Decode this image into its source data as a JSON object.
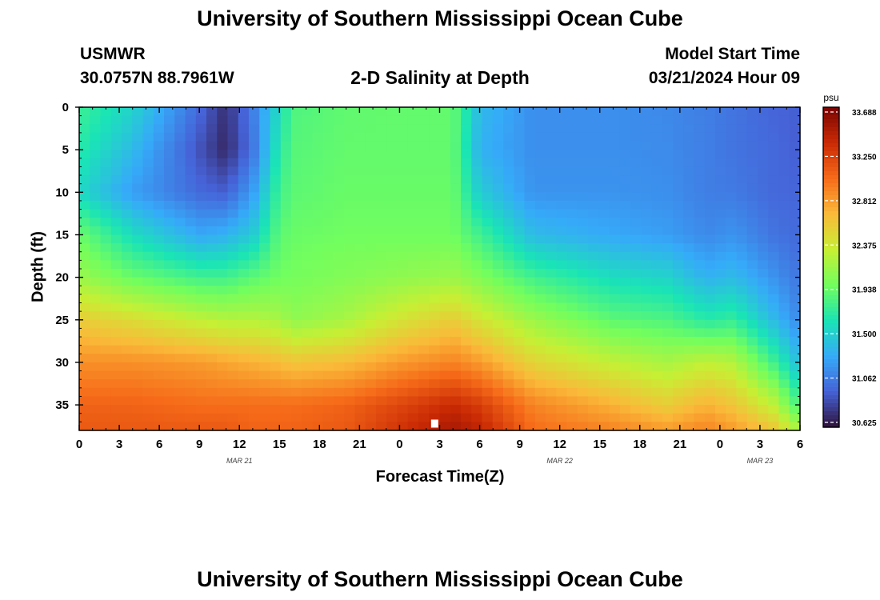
{
  "page": {
    "title": "University of Southern Mississippi Ocean Cube",
    "footer_title": "University of Southern Mississippi Ocean Cube"
  },
  "station": {
    "id": "USMWR",
    "coords": "30.0757N  88.7961W"
  },
  "model": {
    "label": "Model Start Time",
    "time": "03/21/2024 Hour 09"
  },
  "chart_data": {
    "type": "heatmap",
    "title": "2-D Salinity at Depth",
    "xlabel": "Forecast Time(Z)",
    "ylabel": "Depth (ft)",
    "x_unit": "forecast hours from 03/21 00Z",
    "xlim": [
      0,
      54
    ],
    "ylim": [
      0,
      38
    ],
    "y_inverted": true,
    "x_ticks": [
      0,
      3,
      6,
      9,
      12,
      15,
      18,
      21,
      24,
      27,
      30,
      33,
      36,
      39,
      42,
      45,
      48,
      51,
      54
    ],
    "x_tick_labels": [
      "0",
      "3",
      "6",
      "9",
      "12",
      "15",
      "18",
      "21",
      "0",
      "3",
      "6",
      "9",
      "12",
      "15",
      "18",
      "21",
      "0",
      "3",
      "6"
    ],
    "y_ticks": [
      0,
      5,
      10,
      15,
      20,
      25,
      30,
      35
    ],
    "y_tick_labels": [
      "0",
      "5",
      "10",
      "15",
      "20",
      "25",
      "30",
      "35"
    ],
    "date_labels": [
      {
        "x": 12,
        "text": "MAR 21"
      },
      {
        "x": 36,
        "text": "MAR 22"
      },
      {
        "x": 51,
        "text": "MAR 23"
      }
    ],
    "marker": {
      "x": 26.6,
      "y": 37.2
    },
    "colorbar": {
      "unit": "psu",
      "min": 30.625,
      "max": 33.688,
      "tick_labels": [
        "33.688",
        "33.250",
        "32.812",
        "32.375",
        "31.938",
        "31.500",
        "31.062",
        "30.625"
      ],
      "colors": [
        "#30123b",
        "#4662d7",
        "#36aaf9",
        "#1ae4b6",
        "#72fe5e",
        "#c7ef34",
        "#faba39",
        "#f66b19",
        "#ca2a04",
        "#7a0403"
      ]
    },
    "grid_dims": {
      "nx": 68,
      "ny": 38
    },
    "salinity_anchors": {
      "times": [
        0,
        4,
        9,
        11,
        13,
        15,
        16,
        20,
        24,
        28,
        30,
        34,
        40,
        44,
        47,
        49,
        52,
        54
      ],
      "depths": [
        0,
        5,
        10,
        15,
        20,
        25,
        30,
        35,
        38
      ],
      "values": [
        [
          31.78,
          31.7,
          31.58,
          31.96,
          32.15,
          32.55,
          32.85,
          33.05,
          33.1
        ],
        [
          31.55,
          31.4,
          31.25,
          31.6,
          31.95,
          32.45,
          32.85,
          33.05,
          33.1
        ],
        [
          31.0,
          30.9,
          31.0,
          31.3,
          31.8,
          32.3,
          32.8,
          33.0,
          33.1
        ],
        [
          30.75,
          30.72,
          30.95,
          31.35,
          31.8,
          32.25,
          32.75,
          33.0,
          33.1
        ],
        [
          31.1,
          31.05,
          31.25,
          31.5,
          31.9,
          32.25,
          32.7,
          33.0,
          33.05
        ],
        [
          31.6,
          31.7,
          31.8,
          31.9,
          31.98,
          32.2,
          32.65,
          33.0,
          33.05
        ],
        [
          31.85,
          31.88,
          31.9,
          31.95,
          32.0,
          32.1,
          32.6,
          33.0,
          33.05
        ],
        [
          31.92,
          31.93,
          31.95,
          31.98,
          32.05,
          32.2,
          32.65,
          33.05,
          33.1
        ],
        [
          31.93,
          31.93,
          31.95,
          31.98,
          32.1,
          32.4,
          32.8,
          33.2,
          33.3
        ],
        [
          31.93,
          31.93,
          31.95,
          31.98,
          32.15,
          32.55,
          32.9,
          33.35,
          33.5
        ],
        [
          31.4,
          31.35,
          31.5,
          31.8,
          32.05,
          32.4,
          32.8,
          33.25,
          33.4
        ],
        [
          31.18,
          31.18,
          31.2,
          31.4,
          31.8,
          32.15,
          32.5,
          32.9,
          33.0
        ],
        [
          31.18,
          31.18,
          31.2,
          31.3,
          31.6,
          31.9,
          32.3,
          32.7,
          32.9
        ],
        [
          31.15,
          31.16,
          31.18,
          31.25,
          31.55,
          31.85,
          32.2,
          32.55,
          32.8
        ],
        [
          31.1,
          31.1,
          31.1,
          31.15,
          31.35,
          31.7,
          32.3,
          32.7,
          32.9
        ],
        [
          31.05,
          31.05,
          31.08,
          31.2,
          31.4,
          31.75,
          32.25,
          32.6,
          32.8
        ],
        [
          30.98,
          31.0,
          31.0,
          31.05,
          31.2,
          31.4,
          31.8,
          32.3,
          32.6
        ],
        [
          30.95,
          30.95,
          30.98,
          31.0,
          31.05,
          31.15,
          31.4,
          31.8,
          32.2
        ]
      ]
    }
  }
}
